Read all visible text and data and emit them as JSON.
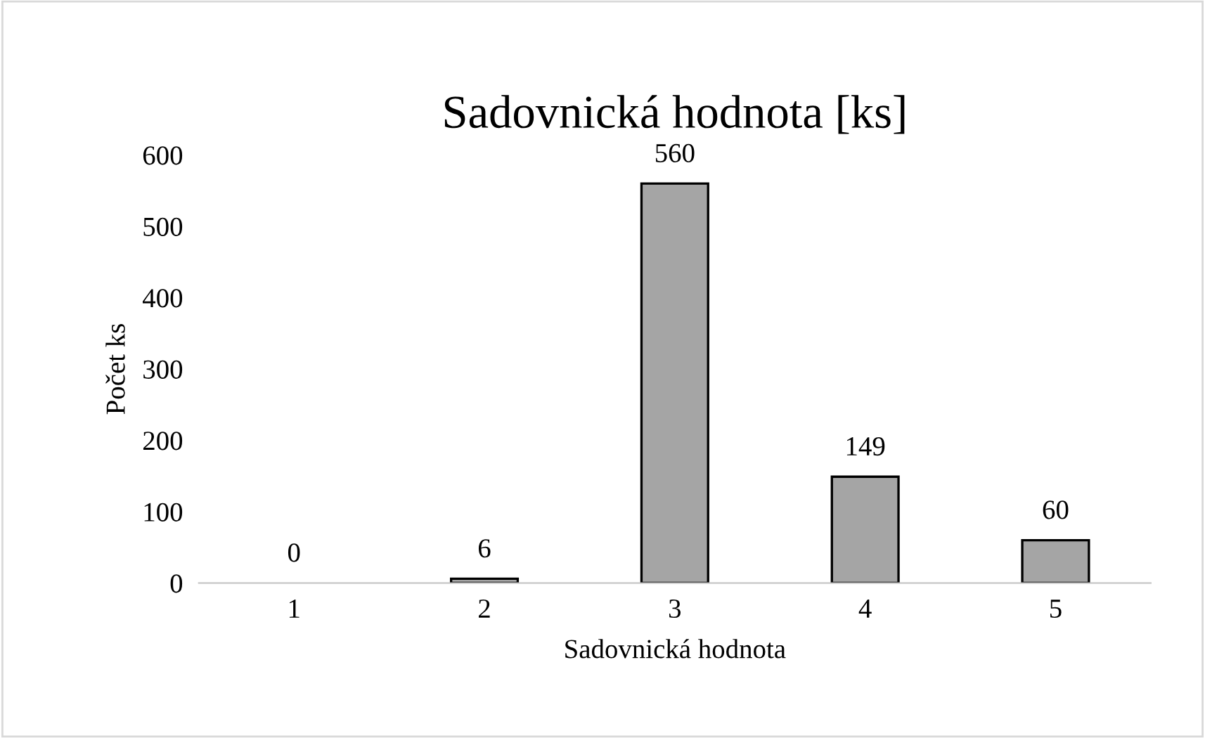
{
  "chart_data": {
    "type": "bar",
    "title": "Sadovnická hodnota [ks]",
    "xlabel": "Sadovnická hodnota",
    "ylabel": "Počet ks",
    "categories": [
      "1",
      "2",
      "3",
      "4",
      "5"
    ],
    "values": [
      0,
      6,
      560,
      149,
      60
    ],
    "color": "#a5a5a5",
    "ylim": [
      0,
      600
    ],
    "yticks": [
      0,
      100,
      200,
      300,
      400,
      500,
      600
    ],
    "data_labels": true,
    "grid": false
  }
}
